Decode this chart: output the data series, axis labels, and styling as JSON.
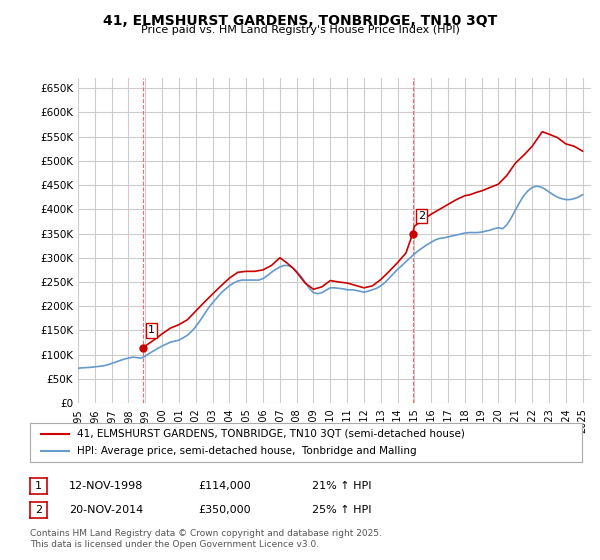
{
  "title": "41, ELMSHURST GARDENS, TONBRIDGE, TN10 3QT",
  "subtitle": "Price paid vs. HM Land Registry's House Price Index (HPI)",
  "ylim": [
    0,
    670000
  ],
  "yticks": [
    0,
    50000,
    100000,
    150000,
    200000,
    250000,
    300000,
    350000,
    400000,
    450000,
    500000,
    550000,
    600000,
    650000
  ],
  "xlim_start": 1995.0,
  "xlim_end": 2025.5,
  "line_color_price": "#cc0000",
  "line_color_hpi": "#6699cc",
  "grid_color": "#cccccc",
  "background_color": "#ffffff",
  "purchase1_x": 1998.87,
  "purchase1_y": 114000,
  "purchase1_label": "1",
  "purchase2_x": 2014.9,
  "purchase2_y": 350000,
  "purchase2_label": "2",
  "vline_color": "#ff6666",
  "legend_label_price": "41, ELMSHURST GARDENS, TONBRIDGE, TN10 3QT (semi-detached house)",
  "legend_label_hpi": "HPI: Average price, semi-detached house,  Tonbridge and Malling",
  "annotation1": "1    12-NOV-1998        £114,000        21% ↑ HPI",
  "annotation2": "2    20-NOV-2014        £350,000        25% ↑ HPI",
  "footer": "Contains HM Land Registry data © Crown copyright and database right 2025.\nThis data is licensed under the Open Government Licence v3.0.",
  "hpi_data": {
    "years": [
      1995.0,
      1995.25,
      1995.5,
      1995.75,
      1996.0,
      1996.25,
      1996.5,
      1996.75,
      1997.0,
      1997.25,
      1997.5,
      1997.75,
      1998.0,
      1998.25,
      1998.5,
      1998.75,
      1999.0,
      1999.25,
      1999.5,
      1999.75,
      2000.0,
      2000.25,
      2000.5,
      2000.75,
      2001.0,
      2001.25,
      2001.5,
      2001.75,
      2002.0,
      2002.25,
      2002.5,
      2002.75,
      2003.0,
      2003.25,
      2003.5,
      2003.75,
      2004.0,
      2004.25,
      2004.5,
      2004.75,
      2005.0,
      2005.25,
      2005.5,
      2005.75,
      2006.0,
      2006.25,
      2006.5,
      2006.75,
      2007.0,
      2007.25,
      2007.5,
      2007.75,
      2008.0,
      2008.25,
      2008.5,
      2008.75,
      2009.0,
      2009.25,
      2009.5,
      2009.75,
      2010.0,
      2010.25,
      2010.5,
      2010.75,
      2011.0,
      2011.25,
      2011.5,
      2011.75,
      2012.0,
      2012.25,
      2012.5,
      2012.75,
      2013.0,
      2013.25,
      2013.5,
      2013.75,
      2014.0,
      2014.25,
      2014.5,
      2014.75,
      2015.0,
      2015.25,
      2015.5,
      2015.75,
      2016.0,
      2016.25,
      2016.5,
      2016.75,
      2017.0,
      2017.25,
      2017.5,
      2017.75,
      2018.0,
      2018.25,
      2018.5,
      2018.75,
      2019.0,
      2019.25,
      2019.5,
      2019.75,
      2020.0,
      2020.25,
      2020.5,
      2020.75,
      2021.0,
      2021.25,
      2021.5,
      2021.75,
      2022.0,
      2022.25,
      2022.5,
      2022.75,
      2023.0,
      2023.25,
      2023.5,
      2023.75,
      2024.0,
      2024.25,
      2024.5,
      2024.75,
      2025.0
    ],
    "values": [
      72000,
      73000,
      73500,
      74000,
      75000,
      76000,
      77000,
      79000,
      82000,
      85000,
      88000,
      91000,
      93000,
      95000,
      94000,
      93000,
      97000,
      103000,
      108000,
      113000,
      118000,
      122000,
      126000,
      128000,
      130000,
      135000,
      140000,
      148000,
      158000,
      170000,
      183000,
      196000,
      207000,
      217000,
      227000,
      235000,
      242000,
      248000,
      252000,
      254000,
      254000,
      254000,
      254000,
      254000,
      257000,
      263000,
      270000,
      276000,
      281000,
      284000,
      284000,
      280000,
      272000,
      262000,
      250000,
      237000,
      228000,
      226000,
      228000,
      233000,
      238000,
      238000,
      237000,
      236000,
      234000,
      234000,
      233000,
      231000,
      229000,
      231000,
      234000,
      237000,
      242000,
      249000,
      258000,
      267000,
      276000,
      284000,
      292000,
      300000,
      308000,
      315000,
      321000,
      327000,
      332000,
      337000,
      340000,
      341000,
      343000,
      345000,
      347000,
      349000,
      351000,
      352000,
      352000,
      352000,
      353000,
      355000,
      357000,
      360000,
      362000,
      360000,
      368000,
      382000,
      398000,
      414000,
      428000,
      438000,
      445000,
      448000,
      446000,
      442000,
      436000,
      430000,
      425000,
      422000,
      420000,
      420000,
      422000,
      425000,
      430000
    ]
  },
  "price_data": {
    "years": [
      1998.87,
      2014.9
    ],
    "values": [
      114000,
      350000
    ],
    "extended_years": [
      1998.87,
      1999.0,
      1999.5,
      2000.0,
      2000.5,
      2001.0,
      2001.5,
      2002.0,
      2002.5,
      2003.0,
      2003.5,
      2004.0,
      2004.5,
      2005.0,
      2005.5,
      2006.0,
      2006.5,
      2007.0,
      2007.2,
      2007.4,
      2007.8,
      2008.0,
      2008.5,
      2009.0,
      2009.5,
      2010.0,
      2010.5,
      2011.0,
      2011.5,
      2012.0,
      2012.5,
      2013.0,
      2013.5,
      2014.0,
      2014.5,
      2014.9,
      2015.0,
      2015.5,
      2016.0,
      2016.5,
      2017.0,
      2017.5,
      2018.0,
      2018.3,
      2018.7,
      2019.0,
      2019.5,
      2020.0,
      2020.5,
      2021.0,
      2021.3,
      2021.6,
      2022.0,
      2022.3,
      2022.6,
      2023.0,
      2023.5,
      2024.0,
      2024.5,
      2025.0
    ],
    "extended_values": [
      114000,
      118000,
      130000,
      143000,
      155000,
      162000,
      172000,
      190000,
      208000,
      225000,
      242000,
      258000,
      270000,
      272000,
      272000,
      275000,
      284000,
      300000,
      295000,
      290000,
      278000,
      270000,
      248000,
      235000,
      240000,
      253000,
      250000,
      248000,
      243000,
      238000,
      242000,
      255000,
      272000,
      290000,
      310000,
      350000,
      365000,
      378000,
      390000,
      400000,
      410000,
      420000,
      428000,
      430000,
      435000,
      438000,
      445000,
      452000,
      470000,
      495000,
      505000,
      515000,
      530000,
      545000,
      560000,
      555000,
      548000,
      535000,
      530000,
      520000
    ]
  }
}
